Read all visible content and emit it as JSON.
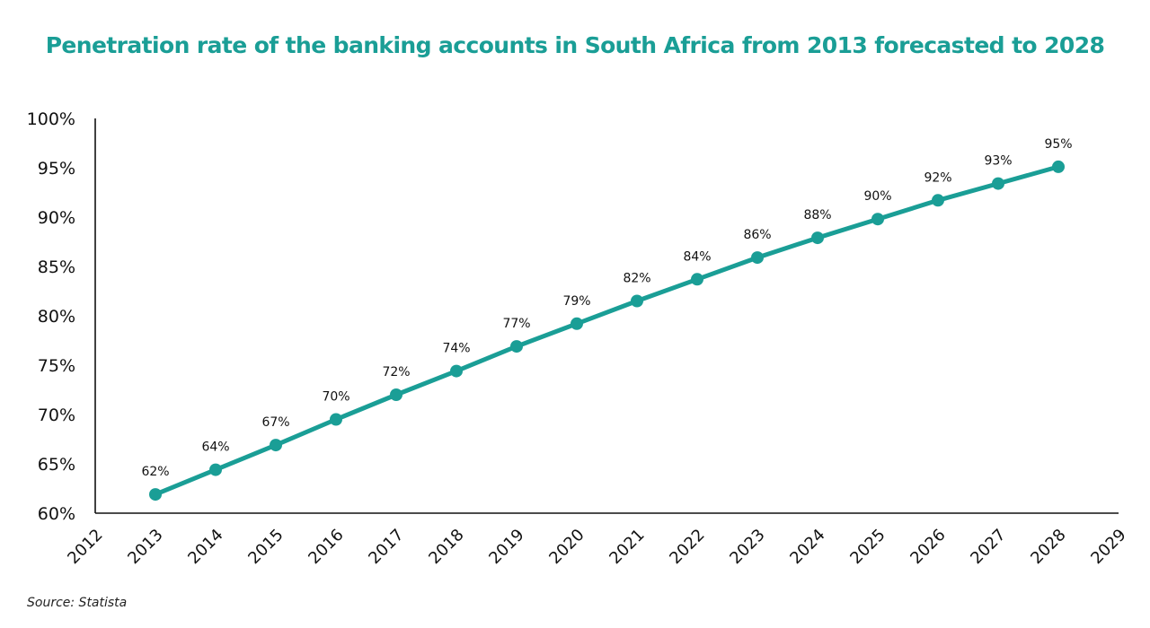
{
  "chart_data": {
    "type": "line",
    "title": "Penetration rate of the banking accounts in South Africa from 2013 forecasted to 2028",
    "xlabel": "",
    "ylabel": "",
    "x": [
      2013,
      2014,
      2015,
      2016,
      2017,
      2018,
      2019,
      2020,
      2021,
      2022,
      2023,
      2024,
      2025,
      2026,
      2027,
      2028
    ],
    "series": [
      {
        "values": [
          61.9,
          64.4,
          66.9,
          69.5,
          72.0,
          74.4,
          76.9,
          79.2,
          81.5,
          83.7,
          85.9,
          87.9,
          89.8,
          91.7,
          93.4,
          95.1
        ],
        "labels": [
          "62%",
          "64%",
          "67%",
          "70%",
          "72%",
          "74%",
          "77%",
          "79%",
          "82%",
          "84%",
          "86%",
          "88%",
          "90%",
          "92%",
          "93%",
          "95%"
        ],
        "color": "#1a9e96"
      }
    ],
    "xlim": [
      2012,
      2029
    ],
    "ylim": [
      60,
      100
    ],
    "xticks": [
      "2012",
      "2013",
      "2014",
      "2015",
      "2016",
      "2017",
      "2018",
      "2019",
      "2020",
      "2021",
      "2022",
      "2023",
      "2024",
      "2025",
      "2026",
      "2027",
      "2028",
      "2029"
    ],
    "yticks": [
      "60%",
      "65%",
      "70%",
      "75%",
      "80%",
      "85%",
      "90%",
      "95%",
      "100%"
    ],
    "grid": false,
    "legend": "none"
  },
  "source": "Source: Statista",
  "colors": {
    "accent": "#1a9e96",
    "axis": "#111111"
  }
}
